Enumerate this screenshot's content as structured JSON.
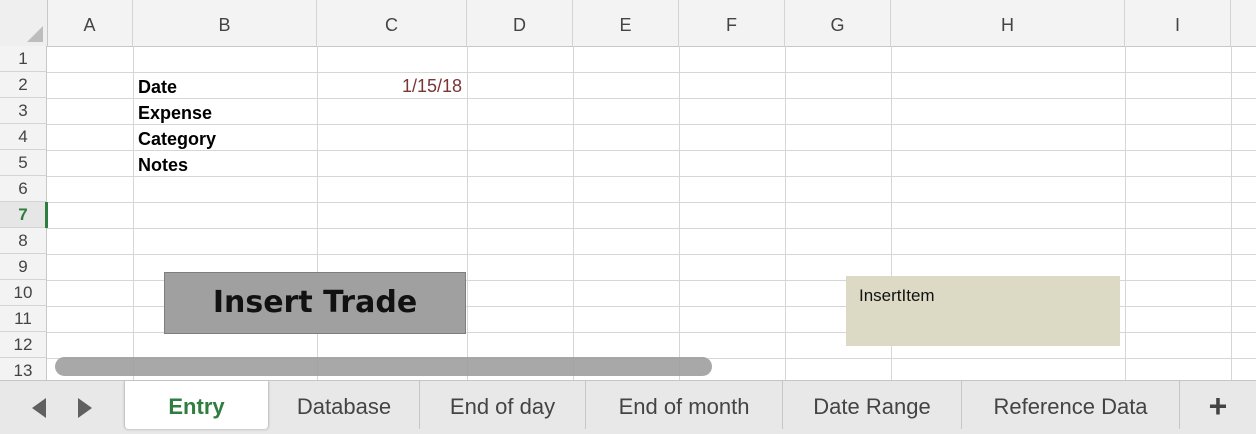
{
  "columns": [
    "A",
    "B",
    "C",
    "D",
    "E",
    "F",
    "G",
    "H",
    "I"
  ],
  "rows": [
    "1",
    "2",
    "3",
    "4",
    "5",
    "6",
    "7",
    "8",
    "9",
    "10",
    "11",
    "12",
    "13"
  ],
  "active_row": "7",
  "cells": {
    "b2": "Date",
    "c2": "1/15/18",
    "b3": "Expense",
    "b4": "Category",
    "b5": "Notes"
  },
  "buttons": {
    "insert_trade": "Insert Trade"
  },
  "shapes": {
    "insert_item": "InsertItem"
  },
  "sheet_tabs": [
    "Entry",
    "Database",
    "End of day",
    "End of month",
    "Date Range",
    "Reference Data"
  ],
  "active_tab": "Entry",
  "add_sheet": "+",
  "colors": {
    "accent": "#2f7d3f",
    "date_text": "#7a3535",
    "button_bg": "#a0a0a0",
    "shape_bg": "#dcdac4"
  },
  "icons": [
    "scroll-left-icon",
    "scroll-right-icon",
    "add-sheet-icon"
  ]
}
